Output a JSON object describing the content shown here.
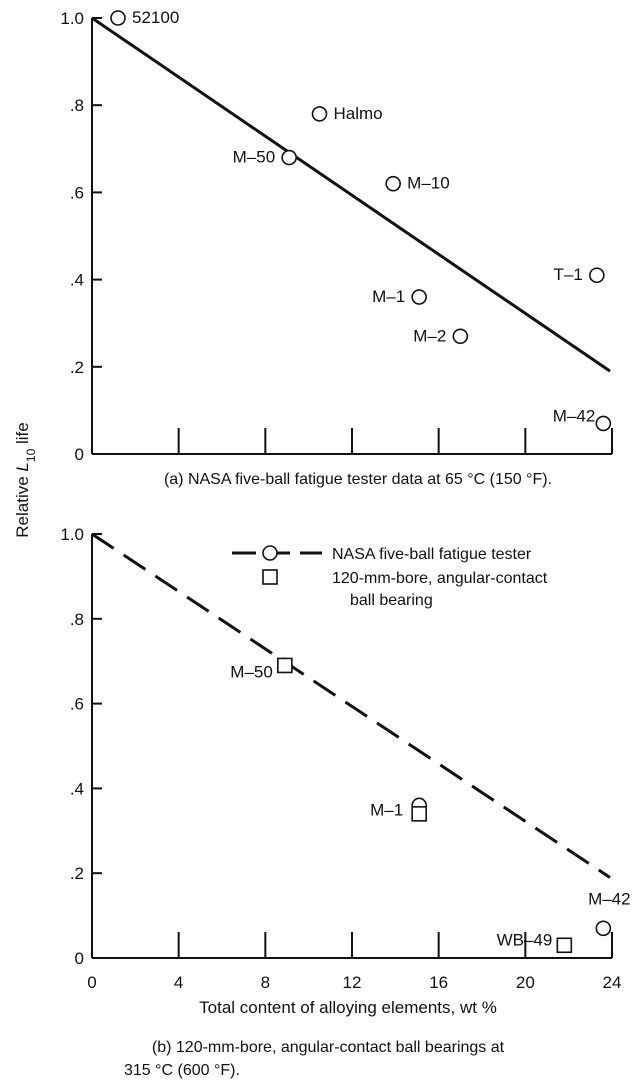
{
  "figure": {
    "ylabel_prefix": "Relative ",
    "ylabel_symbol": "L",
    "ylabel_subscript": "10",
    "ylabel_suffix": " life",
    "xlabel": "Total content of alloying elements, wt %"
  },
  "chart_data": [
    {
      "type": "scatter",
      "title": "(a) NASA five-ball fatigue tester data at 65 °C (150 °F).",
      "xlim": [
        0,
        24
      ],
      "ylim": [
        0,
        1.0
      ],
      "y_ticks": [
        0,
        0.2,
        0.4,
        0.6,
        0.8,
        1.0
      ],
      "y_tick_labels": [
        "0",
        ".2",
        ".4",
        ".6",
        ".8",
        "1.0"
      ],
      "x_ticks": [
        0,
        4,
        8,
        12,
        16,
        20,
        24
      ],
      "fit_line": {
        "style": "solid",
        "x": [
          0,
          24
        ],
        "y": [
          1.0,
          0.19
        ]
      },
      "series": [
        {
          "marker": "circle",
          "points": [
            {
              "label": "52100",
              "x": 1.2,
              "y": 1.0
            },
            {
              "label": "Halmo",
              "x": 10.5,
              "y": 0.78
            },
            {
              "label": "M–50",
              "x": 9.1,
              "y": 0.68
            },
            {
              "label": "M–10",
              "x": 13.9,
              "y": 0.62
            },
            {
              "label": "T–1",
              "x": 23.3,
              "y": 0.41
            },
            {
              "label": "M–1",
              "x": 15.1,
              "y": 0.36
            },
            {
              "label": "M–2",
              "x": 17.0,
              "y": 0.27
            },
            {
              "label": "M–42",
              "x": 23.6,
              "y": 0.07
            }
          ]
        }
      ]
    },
    {
      "type": "scatter",
      "title": "(b) 120-mm-bore, angular-contact ball bearings at 315 °C (600 °F).",
      "title_lines": [
        "(b) 120-mm-bore, angular-contact ball bearings at",
        "315 °C (600 °F)."
      ],
      "xlim": [
        0,
        24
      ],
      "ylim": [
        0,
        1.0
      ],
      "y_ticks": [
        0,
        0.2,
        0.4,
        0.6,
        0.8,
        1.0
      ],
      "y_tick_labels": [
        "0",
        ".2",
        ".4",
        ".6",
        ".8",
        "1.0"
      ],
      "x_ticks": [
        0,
        4,
        8,
        12,
        16,
        20,
        24
      ],
      "x_tick_labels": [
        "0",
        "4",
        "8",
        "12",
        "16",
        "20",
        "24"
      ],
      "fit_line": {
        "style": "dashed",
        "x": [
          0,
          24
        ],
        "y": [
          1.0,
          0.19
        ]
      },
      "legend": {
        "placement": "top-right",
        "entries": [
          {
            "marker": "circle-dashed-line",
            "lines": [
              "NASA five-ball fatigue tester"
            ]
          },
          {
            "marker": "square",
            "lines": [
              "120-mm-bore, angular-contact",
              "ball bearing"
            ]
          }
        ]
      },
      "series": [
        {
          "name": "NASA five-ball fatigue tester",
          "marker": "circle",
          "points": [
            {
              "label": "M–50",
              "x": 8.9,
              "y": 0.69
            },
            {
              "label": "M–1",
              "x": 15.1,
              "y": 0.36
            },
            {
              "label": "M–42",
              "x": 23.6,
              "y": 0.07
            }
          ]
        },
        {
          "name": "120-mm-bore, angular-contact ball bearing",
          "marker": "square",
          "points": [
            {
              "label": "",
              "x": 8.9,
              "y": 0.69
            },
            {
              "label": "",
              "x": 15.1,
              "y": 0.34
            },
            {
              "label": "WB–49",
              "x": 21.8,
              "y": 0.03
            }
          ]
        }
      ]
    }
  ]
}
